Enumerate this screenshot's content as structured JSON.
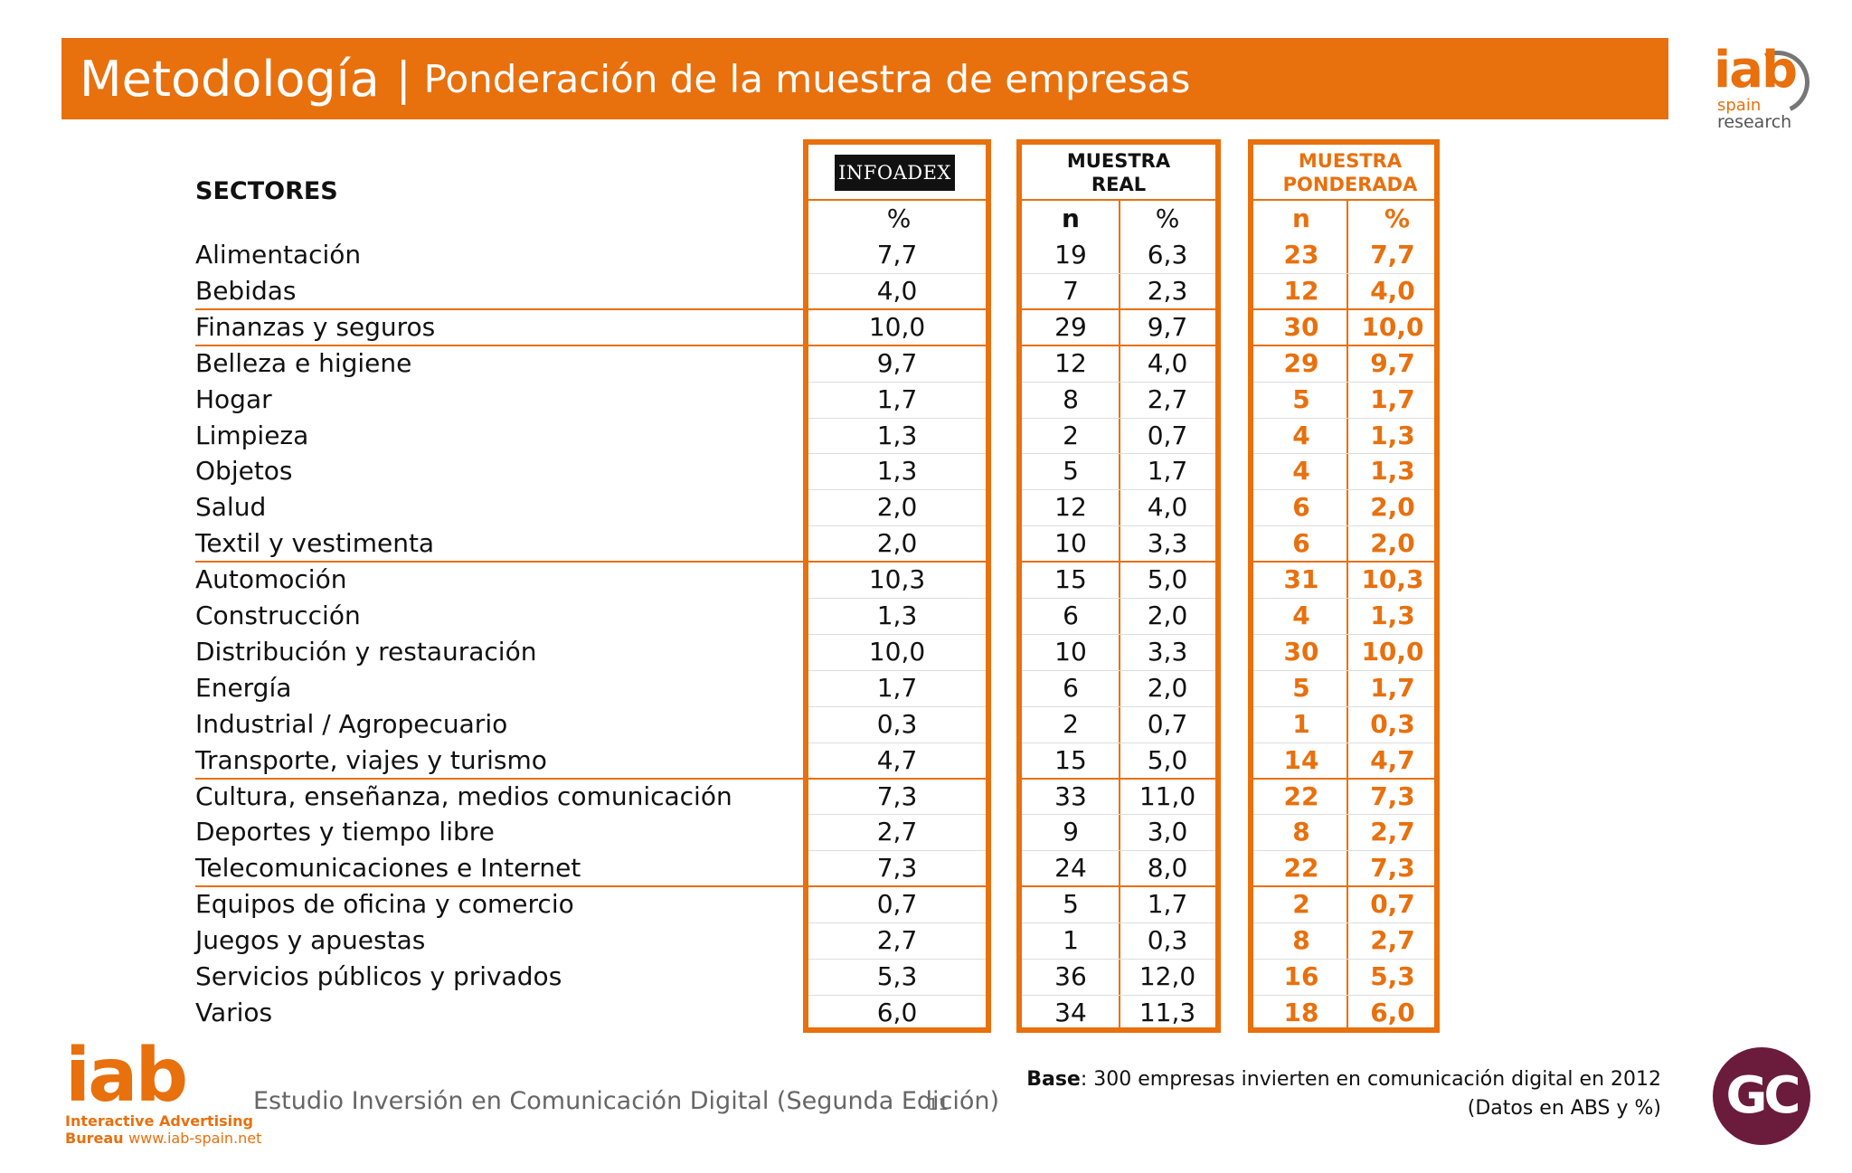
{
  "header": {
    "title_main": "Metodología",
    "separator": "|",
    "title_sub": "Ponderación de la muestra de empresas"
  },
  "logo_top": {
    "mark": "iab",
    "line1": "spain",
    "line2": "research"
  },
  "table": {
    "sectors_header": "SECTORES",
    "infoadex_label": "INFOADEX",
    "muestra_real_title": [
      "MUESTRA",
      "REAL"
    ],
    "muestra_ponderada_title": [
      "MUESTRA",
      "PONDERADA"
    ],
    "col_pct": "%",
    "col_n": "n",
    "rows": [
      {
        "sector": "Alimentación",
        "infoadex": "7,7",
        "real_n": "19",
        "real_pct": "6,3",
        "pond_n": "23",
        "pond_pct": "7,7"
      },
      {
        "sector": "Bebidas",
        "infoadex": "4,0",
        "real_n": "7",
        "real_pct": "2,3",
        "pond_n": "12",
        "pond_pct": "4,0"
      },
      {
        "sector": "Finanzas y seguros",
        "infoadex": "10,0",
        "real_n": "29",
        "real_pct": "9,7",
        "pond_n": "30",
        "pond_pct": "10,0"
      },
      {
        "sector": "Belleza e higiene",
        "infoadex": "9,7",
        "real_n": "12",
        "real_pct": "4,0",
        "pond_n": "29",
        "pond_pct": "9,7"
      },
      {
        "sector": "Hogar",
        "infoadex": "1,7",
        "real_n": "8",
        "real_pct": "2,7",
        "pond_n": "5",
        "pond_pct": "1,7"
      },
      {
        "sector": "Limpieza",
        "infoadex": "1,3",
        "real_n": "2",
        "real_pct": "0,7",
        "pond_n": "4",
        "pond_pct": "1,3"
      },
      {
        "sector": "Objetos",
        "infoadex": "1,3",
        "real_n": "5",
        "real_pct": "1,7",
        "pond_n": "4",
        "pond_pct": "1,3"
      },
      {
        "sector": "Salud",
        "infoadex": "2,0",
        "real_n": "12",
        "real_pct": "4,0",
        "pond_n": "6",
        "pond_pct": "2,0"
      },
      {
        "sector": "Textil y vestimenta",
        "infoadex": "2,0",
        "real_n": "10",
        "real_pct": "3,3",
        "pond_n": "6",
        "pond_pct": "2,0"
      },
      {
        "sector": "Automoción",
        "infoadex": "10,3",
        "real_n": "15",
        "real_pct": "5,0",
        "pond_n": "31",
        "pond_pct": "10,3"
      },
      {
        "sector": "Construcción",
        "infoadex": "1,3",
        "real_n": "6",
        "real_pct": "2,0",
        "pond_n": "4",
        "pond_pct": "1,3"
      },
      {
        "sector": "Distribución y restauración",
        "infoadex": "10,0",
        "real_n": "10",
        "real_pct": "3,3",
        "pond_n": "30",
        "pond_pct": "10,0"
      },
      {
        "sector": "Energía",
        "infoadex": "1,7",
        "real_n": "6",
        "real_pct": "2,0",
        "pond_n": "5",
        "pond_pct": "1,7"
      },
      {
        "sector": "Industrial / Agropecuario",
        "infoadex": "0,3",
        "real_n": "2",
        "real_pct": "0,7",
        "pond_n": "1",
        "pond_pct": "0,3"
      },
      {
        "sector": "Transporte, viajes y turismo",
        "infoadex": "4,7",
        "real_n": "15",
        "real_pct": "5,0",
        "pond_n": "14",
        "pond_pct": "4,7"
      },
      {
        "sector": "Cultura, enseñanza, medios comunicación",
        "infoadex": "7,3",
        "real_n": "33",
        "real_pct": "11,0",
        "pond_n": "22",
        "pond_pct": "7,3"
      },
      {
        "sector": "Deportes y tiempo libre",
        "infoadex": "2,7",
        "real_n": "9",
        "real_pct": "3,0",
        "pond_n": "8",
        "pond_pct": "2,7"
      },
      {
        "sector": "Telecomunicaciones e Internet",
        "infoadex": "7,3",
        "real_n": "24",
        "real_pct": "8,0",
        "pond_n": "22",
        "pond_pct": "7,3"
      },
      {
        "sector": "Equipos de oficina y comercio",
        "infoadex": "0,7",
        "real_n": "5",
        "real_pct": "1,7",
        "pond_n": "2",
        "pond_pct": "0,7"
      },
      {
        "sector": "Juegos y apuestas",
        "infoadex": "2,7",
        "real_n": "1",
        "real_pct": "0,3",
        "pond_n": "8",
        "pond_pct": "2,7"
      },
      {
        "sector": "Servicios públicos y privados",
        "infoadex": "5,3",
        "real_n": "36",
        "real_pct": "12,0",
        "pond_n": "16",
        "pond_pct": "5,3"
      },
      {
        "sector": "Varios",
        "infoadex": "6,0",
        "real_n": "34",
        "real_pct": "11,3",
        "pond_n": "18",
        "pond_pct": "6,0"
      }
    ],
    "group_separators_after_row": [
      1,
      2,
      8,
      14,
      17
    ]
  },
  "footer": {
    "logo_mark": "iab",
    "logo_line1": "Interactive Advertising",
    "logo_line2": "Bureau",
    "logo_site": "www.iab-spain.net",
    "study": "Estudio Inversión en Comunicación Digital (Segunda Edición)",
    "page": "11",
    "base_label": "Base",
    "base_text": ": 300 empresas invierten en comunicación digital en 2012",
    "base_note": "(Datos en ABS y %)",
    "gc_logo": "GC"
  },
  "colors": {
    "accent": "#e8700d",
    "gc": "#6b1b3c"
  }
}
